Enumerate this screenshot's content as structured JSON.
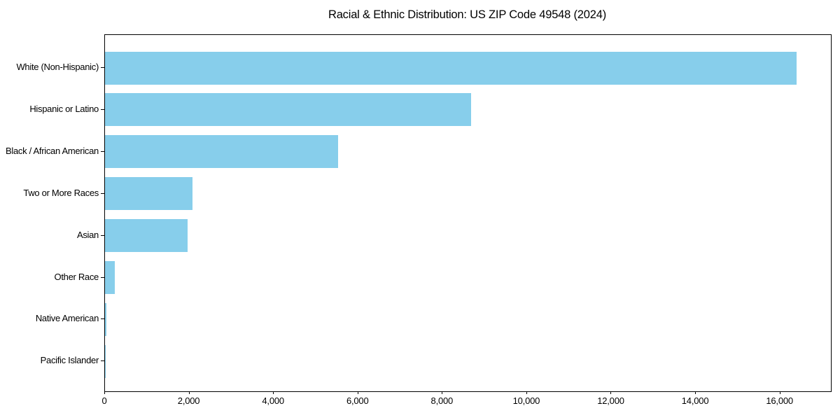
{
  "figure": {
    "background": "#ffffff"
  },
  "chart_data": {
    "type": "bar",
    "orientation": "horizontal",
    "title": "Racial & Ethnic Distribution: US ZIP Code 49548 (2024)",
    "categories": [
      "White (Non-Hispanic)",
      "Hispanic or Latino",
      "Black / African American",
      "Two or More Races",
      "Asian",
      "Other Race",
      "Native American",
      "Pacific Islander"
    ],
    "values": [
      16380,
      8670,
      5515,
      2080,
      1960,
      240,
      30,
      10
    ],
    "xlabel": "",
    "ylabel": "",
    "xlim": [
      0,
      17200
    ],
    "xticks": [
      0,
      2000,
      4000,
      6000,
      8000,
      10000,
      12000,
      14000,
      16000
    ],
    "xtick_labels": [
      "0",
      "2,000",
      "4,000",
      "6,000",
      "8,000",
      "10,000",
      "12,000",
      "14,000",
      "16,000"
    ],
    "bar_color": "#87CEEB",
    "spine_color": "#000000",
    "text_color": "#000000",
    "grid": false,
    "legend_position": "none"
  }
}
